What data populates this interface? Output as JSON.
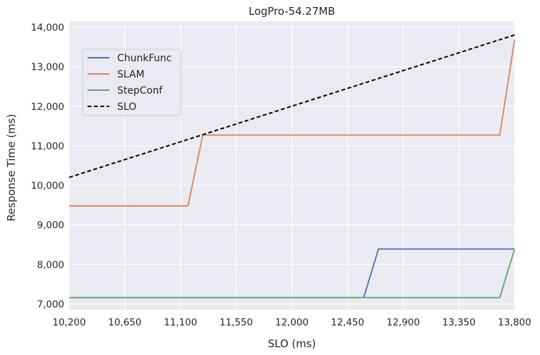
{
  "chart_data": {
    "type": "line",
    "title": "LogPro-54.27MB",
    "xlabel": "SLO (ms)",
    "ylabel": "Response Time (ms)",
    "xlim": [
      10200,
      13800
    ],
    "ylim": [
      6850,
      14150
    ],
    "xticks": [
      10200,
      10650,
      11100,
      11550,
      12000,
      12450,
      12900,
      13350,
      13800
    ],
    "xtick_labels": [
      "10,200",
      "10,650",
      "11,100",
      "11,550",
      "12,000",
      "12,450",
      "12,900",
      "13,350",
      "13,800"
    ],
    "yticks": [
      7000,
      8000,
      9000,
      10000,
      11000,
      12000,
      13000,
      14000
    ],
    "ytick_labels": [
      "7,000",
      "8,000",
      "9,000",
      "10,000",
      "11,000",
      "12,000",
      "13,000",
      "14,000"
    ],
    "grid": true,
    "background": "#eaeaf2",
    "legend_position": "upper-left",
    "series": [
      {
        "name": "ChunkFunc",
        "color": "#4c72b0",
        "dash": "solid",
        "points": [
          [
            10200,
            7160
          ],
          [
            12580,
            7160
          ],
          [
            12700,
            8390
          ],
          [
            13800,
            8390
          ]
        ]
      },
      {
        "name": "SLAM",
        "color": "#dd8452",
        "dash": "solid",
        "points": [
          [
            10200,
            9480
          ],
          [
            11160,
            9480
          ],
          [
            11280,
            11270
          ],
          [
            13680,
            11270
          ],
          [
            13800,
            13680
          ]
        ]
      },
      {
        "name": "StepConf",
        "color": "#55a868",
        "dash": "solid",
        "points": [
          [
            10200,
            7160
          ],
          [
            13680,
            7160
          ],
          [
            13800,
            8390
          ]
        ]
      },
      {
        "name": "SLO",
        "color": "#000000",
        "dash": "dashed",
        "points": [
          [
            10200,
            10200
          ],
          [
            13800,
            13800
          ]
        ]
      }
    ]
  }
}
